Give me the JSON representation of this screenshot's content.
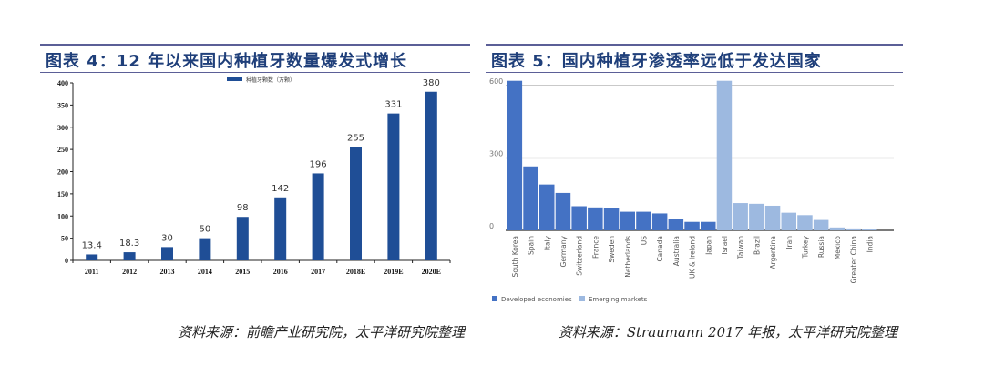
{
  "left_panel": {
    "title": "图表 4：12 年以来国内种植牙数量爆发式增长",
    "source": "资料来源：前瞻产业研究院，太平洋研究院整理"
  },
  "right_panel": {
    "title": "图表 5：国内种植牙渗透率远低于发达国家",
    "source": "资料来源：Straumann 2017 年报，太平洋研究院整理"
  },
  "colors": {
    "bar_dark_blue": "#1f4e96",
    "developed": "#4472c4",
    "emerging": "#9db9e0",
    "rule": "#5b5f97",
    "title_text": "#1f3f7a"
  },
  "chart_data": [
    {
      "type": "bar",
      "title": "12 年以来国内种植牙数量爆发式增长",
      "legend": [
        "种植牙颗数（万颗）"
      ],
      "legend_position": "top",
      "categories": [
        "2011",
        "2012",
        "2013",
        "2014",
        "2015",
        "2016",
        "2017",
        "2018E",
        "2019E",
        "2020E"
      ],
      "values": [
        13.4,
        18.3,
        30,
        50,
        98,
        142,
        196,
        255,
        331,
        380
      ],
      "data_labels": [
        "13.4",
        "18.3",
        "30",
        "50",
        "98",
        "142",
        "196",
        "255",
        "331",
        "380"
      ],
      "xlabel": "",
      "ylabel": "",
      "ylim": [
        0,
        400
      ],
      "yticks": [
        0,
        50,
        100,
        150,
        200,
        250,
        300,
        350,
        400
      ],
      "grid": false
    },
    {
      "type": "bar",
      "title": "国内种植牙渗透率远低于发达国家",
      "categories": [
        "South Korea",
        "Spain",
        "Italy",
        "Germany",
        "Switzerland",
        "France",
        "Sweden",
        "Netherlands",
        "US",
        "Canada",
        "Australia",
        "UK & Ireland",
        "Japan",
        "Israel",
        "Taiwan",
        "Brazil",
        "Argentina",
        "Iran",
        "Turkey",
        "Russia",
        "Mexico",
        "Greater China",
        "India"
      ],
      "series": [
        {
          "name": "Developed economies",
          "values": [
            620,
            265,
            190,
            155,
            100,
            95,
            92,
            77,
            77,
            70,
            47,
            35,
            35,
            null,
            null,
            null,
            null,
            null,
            null,
            null,
            null,
            null,
            null
          ]
        },
        {
          "name": "Emerging markets",
          "values": [
            null,
            null,
            null,
            null,
            null,
            null,
            null,
            null,
            null,
            null,
            null,
            null,
            null,
            620,
            113,
            110,
            102,
            73,
            63,
            43,
            12,
            8,
            4
          ]
        }
      ],
      "legend": [
        "Developed economies",
        "Emerging markets"
      ],
      "legend_position": "bottom",
      "xlabel": "",
      "ylabel": "",
      "ylim": [
        0,
        600
      ],
      "yticks": [
        0,
        300,
        600
      ],
      "grid": true
    }
  ]
}
